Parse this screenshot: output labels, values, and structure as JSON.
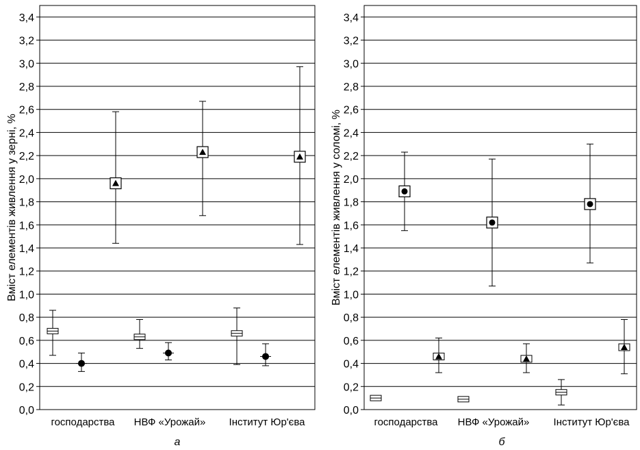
{
  "chart_data": [
    {
      "type": "scatter",
      "ylabel": "Вміст елементів живлення у зерні, %",
      "ylim": [
        0,
        3.5
      ],
      "yticks": [
        "0,0",
        "0,2",
        "0,4",
        "0,6",
        "0,8",
        "1,0",
        "1,2",
        "1,4",
        "1,6",
        "1,8",
        "2,0",
        "2,2",
        "2,4",
        "2,6",
        "2,8",
        "3,0",
        "3,2",
        "3,4"
      ],
      "categories": [
        "господарства",
        "НВФ «Урожай»",
        "Інститут Юр'єва"
      ],
      "grid": "horizontal",
      "panel_label": "а",
      "series": [
        {
          "marker": "square",
          "points": [
            {
              "category": 0,
              "mean": 0.68,
              "low": 0.47,
              "high": 0.86
            },
            {
              "category": 1,
              "mean": 0.63,
              "low": 0.53,
              "high": 0.78
            },
            {
              "category": 2,
              "mean": 0.66,
              "low": 0.39,
              "high": 0.88
            }
          ]
        },
        {
          "marker": "circle",
          "points": [
            {
              "category": 0,
              "mean": 0.4,
              "low": 0.33,
              "high": 0.49
            },
            {
              "category": 1,
              "mean": 0.49,
              "low": 0.43,
              "high": 0.58
            },
            {
              "category": 2,
              "mean": 0.46,
              "low": 0.38,
              "high": 0.57
            }
          ]
        },
        {
          "marker": "triangle",
          "points": [
            {
              "category": 0,
              "mean": 1.96,
              "low": 1.44,
              "high": 2.58
            },
            {
              "category": 1,
              "mean": 2.23,
              "low": 1.68,
              "high": 2.67
            },
            {
              "category": 2,
              "mean": 2.19,
              "low": 1.43,
              "high": 2.97
            }
          ]
        }
      ]
    },
    {
      "type": "scatter",
      "ylabel": "Вміст елементів живлення у соломі, %",
      "ylim": [
        0,
        3.5
      ],
      "yticks": [
        "0,0",
        "0,2",
        "0,4",
        "0,6",
        "0,8",
        "1,0",
        "1,2",
        "1,4",
        "1,6",
        "1,8",
        "2,0",
        "2,2",
        "2,4",
        "2,6",
        "2,8",
        "3,0",
        "3,2",
        "3,4"
      ],
      "categories": [
        "господарства",
        "НВФ «Урожай»",
        "Інститут Юр'єва"
      ],
      "grid": "horizontal",
      "panel_label": "б",
      "series": [
        {
          "marker": "triangle",
          "points": [
            {
              "category": 0,
              "mean": 0.46,
              "low": 0.32,
              "high": 0.62
            },
            {
              "category": 1,
              "mean": 0.44,
              "low": 0.32,
              "high": 0.57
            },
            {
              "category": 2,
              "mean": 0.54,
              "low": 0.31,
              "high": 0.78
            }
          ]
        },
        {
          "marker": "square",
          "points": [
            {
              "category": 0,
              "mean": 0.1,
              "low": 0.08,
              "high": 0.12
            },
            {
              "category": 1,
              "mean": 0.09,
              "low": 0.07,
              "high": 0.1
            },
            {
              "category": 2,
              "mean": 0.15,
              "low": 0.04,
              "high": 0.26
            }
          ]
        },
        {
          "marker": "circle",
          "points": [
            {
              "category": 0,
              "mean": 1.89,
              "low": 1.55,
              "high": 2.23
            },
            {
              "category": 1,
              "mean": 1.62,
              "low": 1.07,
              "high": 2.17
            },
            {
              "category": 2,
              "mean": 1.78,
              "low": 1.27,
              "high": 2.3
            }
          ]
        }
      ]
    }
  ]
}
